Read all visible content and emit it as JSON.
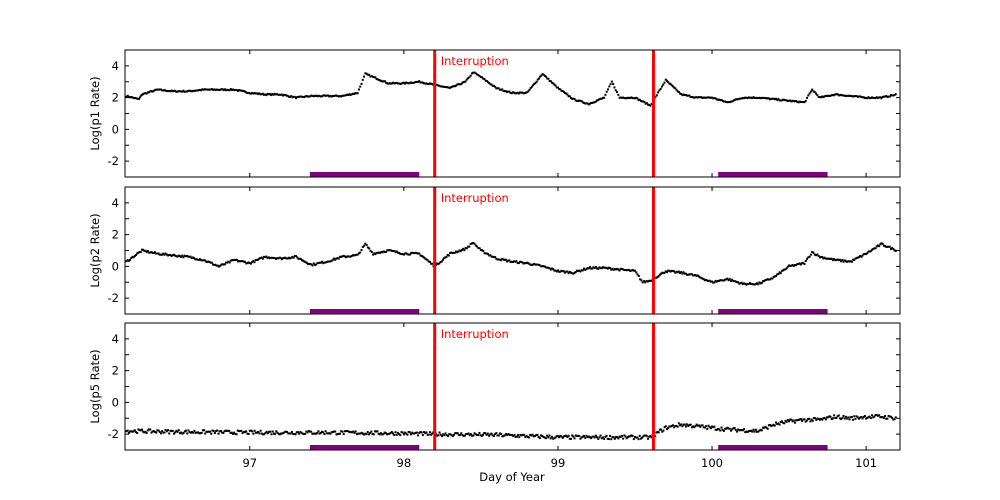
{
  "chart_data": {
    "type": "scatter",
    "xlabel": "Day of Year",
    "xlim": [
      96.19,
      101.22
    ],
    "xticks": [
      97,
      98,
      99,
      100,
      101
    ],
    "annotation_text": "Interruption",
    "interruptions": [
      98.2,
      99.62
    ],
    "shaded_intervals": [
      [
        97.39,
        98.1
      ],
      [
        100.04,
        100.75
      ]
    ],
    "colors": {
      "points": "#000000",
      "interruption": "#ff0000",
      "interval": "#800080"
    },
    "panels": [
      {
        "ylabel": "Log(p1 Rate)",
        "ylim": [
          -3,
          5
        ],
        "yticks": [
          -2,
          0,
          2,
          4
        ],
        "x": [
          96.2,
          96.28,
          96.3,
          96.4,
          96.5,
          96.6,
          96.7,
          96.8,
          96.9,
          97.0,
          97.1,
          97.2,
          97.3,
          97.4,
          97.5,
          97.6,
          97.7,
          97.75,
          97.8,
          97.9,
          98.0,
          98.1,
          98.2,
          98.3,
          98.4,
          98.45,
          98.5,
          98.6,
          98.7,
          98.8,
          98.9,
          99.0,
          99.1,
          99.2,
          99.3,
          99.35,
          99.4,
          99.5,
          99.6,
          99.65,
          99.7,
          99.8,
          99.9,
          100.0,
          100.1,
          100.2,
          100.3,
          100.4,
          100.5,
          100.6,
          100.65,
          100.7,
          100.8,
          100.9,
          101.0,
          101.1,
          101.2
        ],
        "y": [
          2.1,
          1.9,
          2.2,
          2.5,
          2.4,
          2.4,
          2.5,
          2.5,
          2.5,
          2.3,
          2.2,
          2.2,
          2.0,
          2.1,
          2.1,
          2.1,
          2.3,
          3.5,
          3.3,
          2.9,
          2.9,
          3.0,
          2.8,
          2.6,
          3.0,
          3.6,
          3.3,
          2.6,
          2.3,
          2.3,
          3.5,
          2.6,
          1.9,
          1.6,
          2.0,
          3.0,
          2.0,
          2.0,
          1.5,
          2.3,
          3.1,
          2.2,
          2.0,
          2.0,
          1.7,
          2.0,
          2.0,
          1.9,
          1.8,
          1.7,
          2.5,
          2.0,
          2.2,
          2.1,
          2.0,
          2.0,
          2.2
        ]
      },
      {
        "ylabel": "Log(p2 Rate)",
        "ylim": [
          -3,
          5
        ],
        "yticks": [
          -2,
          0,
          2,
          4
        ],
        "x": [
          96.2,
          96.3,
          96.4,
          96.5,
          96.6,
          96.7,
          96.8,
          96.9,
          97.0,
          97.1,
          97.2,
          97.3,
          97.4,
          97.5,
          97.6,
          97.7,
          97.75,
          97.8,
          97.9,
          98.0,
          98.1,
          98.2,
          98.3,
          98.4,
          98.45,
          98.5,
          98.6,
          98.7,
          98.8,
          98.9,
          99.0,
          99.1,
          99.2,
          99.3,
          99.4,
          99.5,
          99.55,
          99.6,
          99.7,
          99.8,
          99.9,
          100.0,
          100.1,
          100.2,
          100.3,
          100.4,
          100.5,
          100.6,
          100.65,
          100.7,
          100.8,
          100.9,
          101.0,
          101.1,
          101.2
        ],
        "y": [
          0.3,
          1.0,
          0.8,
          0.7,
          0.6,
          0.4,
          0.0,
          0.4,
          0.2,
          0.6,
          0.5,
          0.6,
          0.1,
          0.3,
          0.6,
          0.7,
          1.4,
          0.8,
          1.0,
          0.8,
          0.8,
          0.0,
          0.8,
          1.1,
          1.5,
          1.0,
          0.5,
          0.3,
          0.2,
          0.0,
          -0.3,
          -0.4,
          -0.1,
          -0.1,
          -0.2,
          -0.3,
          -1.0,
          -0.9,
          -0.3,
          -0.4,
          -0.6,
          -1.0,
          -0.8,
          -1.1,
          -1.1,
          -0.7,
          0.0,
          0.2,
          0.9,
          0.6,
          0.4,
          0.3,
          0.8,
          1.4,
          1.0
        ]
      },
      {
        "ylabel": "Log(p5 Rate)",
        "ylim": [
          -3,
          5
        ],
        "yticks": [
          -2,
          0,
          2,
          4
        ],
        "x": [
          96.2,
          96.5,
          97.0,
          97.5,
          98.0,
          98.2,
          98.6,
          99.0,
          99.3,
          99.6,
          99.7,
          99.8,
          99.9,
          100.0,
          100.1,
          100.3,
          100.4,
          100.5,
          100.6,
          100.7,
          100.8,
          100.9,
          101.0,
          101.1,
          101.2
        ],
        "y": [
          -1.8,
          -1.85,
          -1.9,
          -1.9,
          -1.95,
          -2.0,
          -2.05,
          -2.2,
          -2.2,
          -2.2,
          -1.6,
          -1.4,
          -1.5,
          -1.6,
          -1.7,
          -1.8,
          -1.4,
          -1.2,
          -1.1,
          -1.1,
          -0.9,
          -1.0,
          -0.9,
          -0.9,
          -1.0
        ]
      }
    ]
  }
}
